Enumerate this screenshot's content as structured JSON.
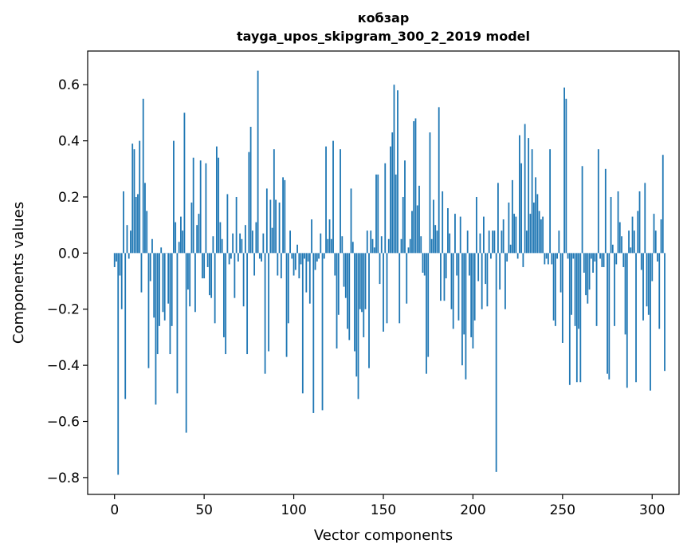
{
  "chart_data": {
    "type": "bar",
    "title": "кобзар",
    "subtitle": "tayga_upos_skipgram_300_2_2019 model",
    "xlabel": "Vector components",
    "ylabel": "Components values",
    "xlim": [
      -15,
      315
    ],
    "ylim": [
      -0.86,
      0.72
    ],
    "xticks": [
      0,
      50,
      100,
      150,
      200,
      250,
      300
    ],
    "yticks": [
      -0.8,
      -0.6,
      -0.4,
      -0.2,
      0.0,
      0.2,
      0.4,
      0.6
    ],
    "ytick_labels": [
      "−0.8",
      "−0.6",
      "−0.4",
      "−0.2",
      "0.0",
      "0.2",
      "0.4",
      "0.6"
    ],
    "bar_color": "#1f77b4",
    "x_start": 0,
    "values": [
      -0.05,
      -0.03,
      -0.79,
      -0.08,
      -0.2,
      0.22,
      -0.52,
      0.1,
      -0.02,
      0.08,
      0.39,
      0.37,
      0.2,
      0.21,
      0.4,
      -0.14,
      0.55,
      0.25,
      0.15,
      -0.41,
      -0.1,
      0.05,
      -0.23,
      -0.54,
      -0.36,
      -0.26,
      0.02,
      -0.21,
      -0.24,
      0.0,
      -0.18,
      -0.36,
      -0.26,
      0.4,
      0.11,
      -0.5,
      0.04,
      0.13,
      0.08,
      0.5,
      -0.64,
      -0.13,
      -0.19,
      0.18,
      0.34,
      -0.21,
      0.1,
      0.14,
      0.33,
      -0.09,
      -0.09,
      0.32,
      -0.05,
      -0.15,
      -0.16,
      0.06,
      -0.25,
      0.38,
      0.34,
      0.11,
      0.05,
      -0.3,
      -0.36,
      0.21,
      -0.04,
      -0.02,
      0.07,
      -0.16,
      0.2,
      -0.03,
      0.07,
      0.05,
      -0.19,
      0.1,
      -0.36,
      0.36,
      0.45,
      0.08,
      -0.08,
      0.11,
      0.65,
      -0.02,
      -0.03,
      0.07,
      -0.43,
      0.23,
      -0.35,
      0.19,
      0.09,
      0.37,
      0.19,
      -0.08,
      0.18,
      -0.09,
      0.27,
      0.26,
      -0.37,
      -0.25,
      0.08,
      -0.02,
      -0.08,
      -0.06,
      0.03,
      -0.09,
      -0.04,
      -0.5,
      -0.02,
      -0.14,
      -0.03,
      -0.18,
      0.12,
      -0.57,
      -0.06,
      -0.03,
      -0.02,
      0.07,
      -0.56,
      -0.02,
      0.38,
      0.05,
      0.12,
      0.05,
      0.4,
      -0.08,
      -0.34,
      -0.22,
      0.37,
      0.06,
      -0.12,
      -0.16,
      -0.27,
      -0.31,
      0.23,
      0.04,
      -0.35,
      -0.44,
      -0.52,
      -0.2,
      -0.21,
      -0.3,
      -0.2,
      0.08,
      -0.41,
      0.08,
      0.05,
      0.02,
      0.28,
      0.28,
      -0.11,
      0.06,
      -0.28,
      0.32,
      -0.25,
      0.05,
      0.38,
      0.43,
      0.6,
      0.28,
      0.58,
      -0.25,
      0.05,
      0.2,
      0.33,
      -0.18,
      0.02,
      0.05,
      0.15,
      0.47,
      0.48,
      0.17,
      0.24,
      0.06,
      -0.07,
      -0.08,
      -0.43,
      -0.37,
      0.43,
      0.05,
      0.19,
      0.1,
      0.08,
      0.52,
      -0.17,
      0.22,
      -0.17,
      -0.09,
      0.16,
      0.07,
      -0.2,
      -0.27,
      0.14,
      -0.08,
      -0.24,
      0.13,
      -0.4,
      -0.29,
      -0.45,
      0.08,
      -0.08,
      -0.3,
      -0.34,
      -0.24,
      0.2,
      -0.1,
      0.07,
      -0.2,
      0.13,
      -0.11,
      -0.19,
      0.08,
      -0.02,
      0.08,
      0.08,
      -0.78,
      0.25,
      -0.13,
      0.08,
      0.12,
      -0.2,
      -0.03,
      0.18,
      0.03,
      0.26,
      0.14,
      0.13,
      -0.02,
      0.42,
      0.32,
      -0.05,
      0.46,
      0.08,
      0.41,
      0.14,
      0.37,
      0.18,
      0.27,
      0.21,
      0.15,
      0.12,
      0.13,
      -0.04,
      -0.02,
      -0.04,
      0.37,
      -0.04,
      -0.24,
      -0.26,
      -0.02,
      0.08,
      -0.14,
      -0.32,
      0.59,
      0.55,
      -0.02,
      -0.47,
      -0.22,
      -0.02,
      -0.26,
      -0.46,
      -0.27,
      -0.46,
      0.31,
      -0.07,
      -0.15,
      -0.18,
      -0.13,
      -0.02,
      -0.07,
      -0.03,
      -0.26,
      0.37,
      -0.02,
      -0.05,
      -0.05,
      0.3,
      -0.43,
      -0.45,
      0.2,
      0.03,
      -0.26,
      -0.04,
      0.22,
      0.11,
      0.06,
      -0.05,
      -0.29,
      -0.48,
      0.08,
      0.02,
      0.13,
      0.08,
      -0.46,
      0.15,
      0.22,
      -0.06,
      -0.24,
      0.25,
      -0.19,
      -0.22,
      -0.49,
      -0.1,
      0.14,
      0.08,
      -0.03,
      -0.27,
      0.12,
      0.35,
      -0.42
    ]
  }
}
